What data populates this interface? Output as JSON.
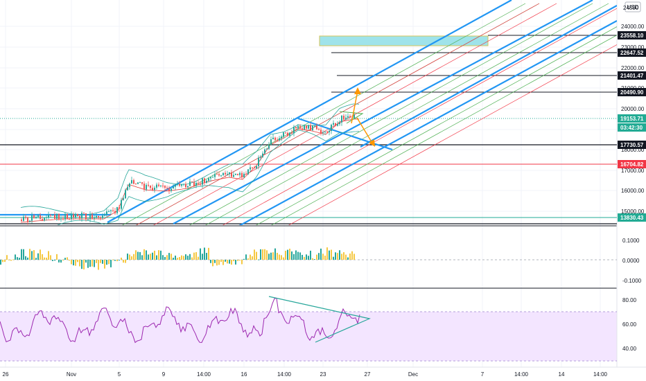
{
  "currency": "USD",
  "price_ticks": [
    "24000.00",
    "23000.00",
    "22000.00",
    "21000.00",
    "20000.00",
    "19000.00",
    "18000.00",
    "17000.00",
    "16000.00",
    "15000.00"
  ],
  "price_ticks_top_partial": "24500",
  "price_labels": [
    {
      "value": "23558.10",
      "bg": "#131722"
    },
    {
      "value": "22647.52",
      "bg": "#131722"
    },
    {
      "value": "21401.47",
      "bg": "#131722"
    },
    {
      "value": "20490.90",
      "bg": "#131722"
    },
    {
      "value": "19153.71",
      "bg": "#22ab94"
    },
    {
      "value": "03:42:30",
      "bg": "#22ab94"
    },
    {
      "value": "17730.57",
      "bg": "#131722"
    },
    {
      "value": "16704.82",
      "bg": "#f23645"
    },
    {
      "value": "13830.43",
      "bg": "#22ab94"
    }
  ],
  "macd_ticks": [
    "0.1000",
    "0.0000",
    "-0.1000"
  ],
  "rsi_ticks": [
    "80.00",
    "60.00",
    "40.00"
  ],
  "time_labels": [
    "26",
    "Nov",
    "5",
    "9",
    "14:00",
    "16",
    "14:00",
    "23",
    "27",
    "Dec",
    "7",
    "14:00",
    "14",
    "14:00"
  ],
  "colors": {
    "channel": "#2196f3",
    "fib_green": "#4caf50",
    "fib_red": "#f23645",
    "arrow": "#ff9800",
    "rsi_line": "#9c27b0",
    "rsi_band": "#f3e5ff",
    "zone": "#9fe3ea",
    "bull": "#26a69a",
    "bear": "#ef5350",
    "macd_pos": "#26a69a",
    "macd_neg": "#f5c842"
  }
}
